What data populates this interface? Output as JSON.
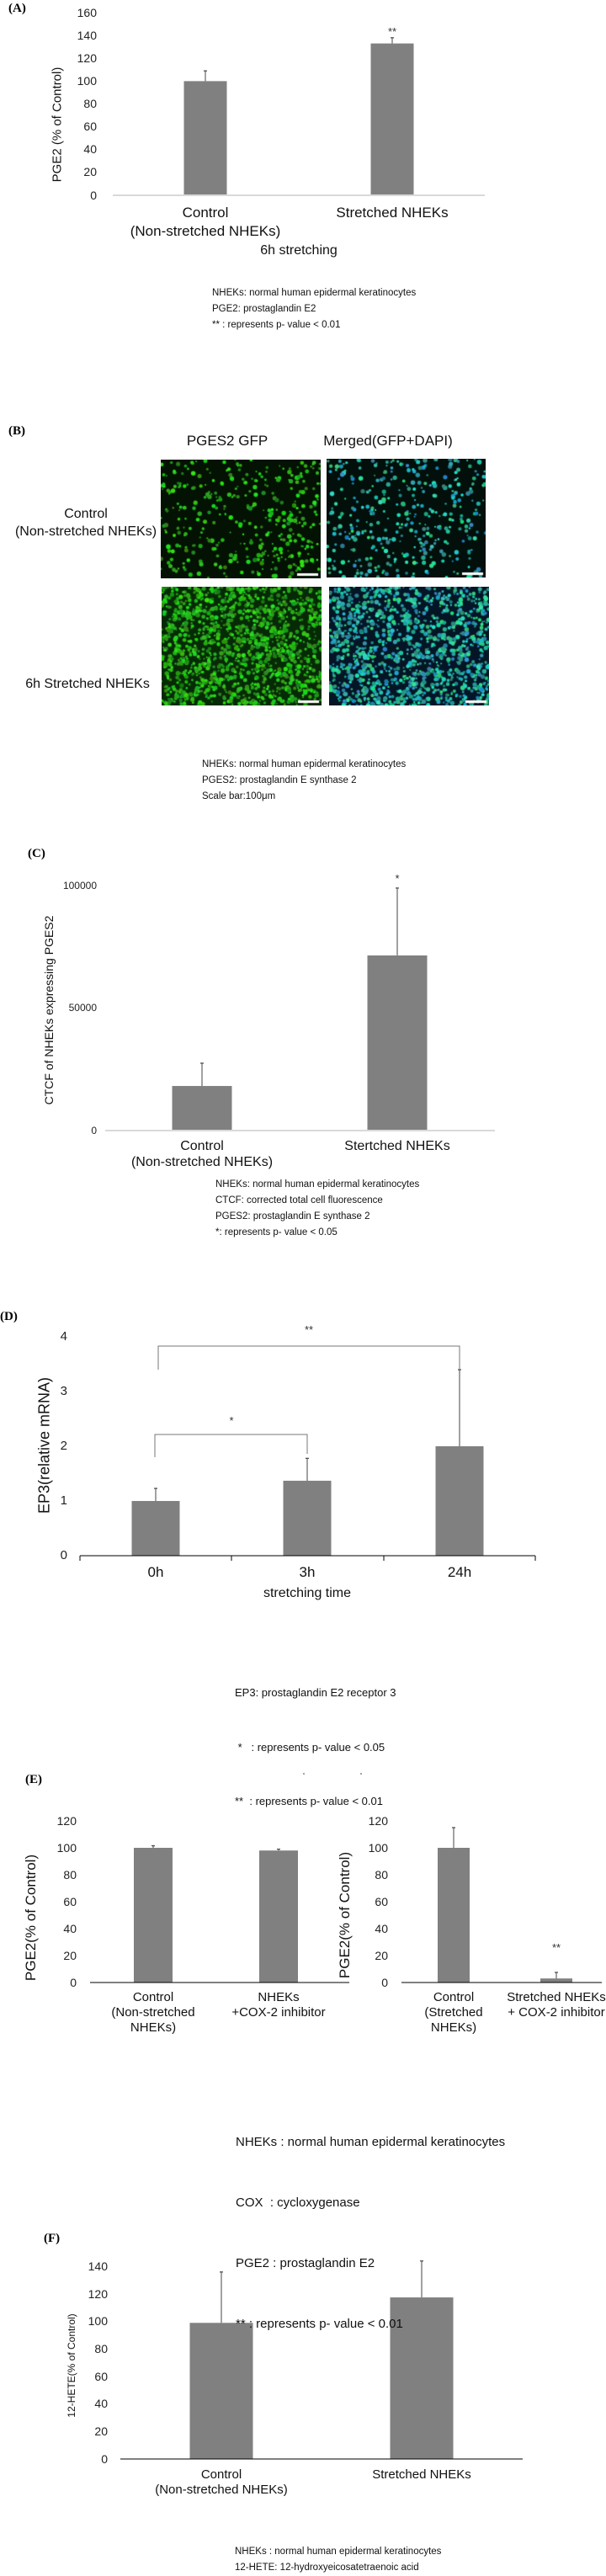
{
  "panels": {
    "A": {
      "label": "(A)",
      "xlabel": "6h stretching",
      "notes": [
        "NHEKs: normal human epidermal keratinocytes",
        "PGE2: prostaglandin E2",
        "** : represents p- value < 0.01"
      ]
    },
    "B": {
      "label": "(B)",
      "col_headers": [
        "PGES2 GFP",
        "Merged(GFP+DAPI)"
      ],
      "row_labels": [
        [
          "Control",
          "(Non-stretched NHEKs)"
        ],
        [
          "6h Stretched NHEKs"
        ]
      ],
      "notes": [
        "NHEKs: normal human epidermal keratinocytes",
        "PGES2: prostaglandin E synthase 2",
        "Scale bar:100μm"
      ]
    },
    "C": {
      "label": "(C)",
      "notes": [
        "NHEKs: normal human epidermal keratinocytes",
        "CTCF: corrected total cell fluorescence",
        "PGES2: prostaglandin E synthase 2",
        "*: represents p- value < 0.05"
      ]
    },
    "D": {
      "label": "(D)",
      "notes": [
        "EP3: prostaglandin E2 receptor 3",
        " *   : represents p- value < 0.05",
        "**  : represents p- value < 0.01"
      ]
    },
    "E": {
      "label": "(E)",
      "notes": [
        "NHEKs : normal human epidermal keratinocytes",
        "COX  : cycloxygenase",
        "PGE2 : prostaglandin E2",
        "** : represents p- value < 0.01"
      ]
    },
    "F": {
      "label": "(F)",
      "notes": [
        "NHEKs : normal human epidermal keratinocytes",
        "12-HETE: 12-hydroxyeicosatetraenoic acid"
      ]
    }
  },
  "colors": {
    "bar": "#808080",
    "error": "#444444",
    "axis_light": "#d9d9d9",
    "axis_dark": "#000000"
  },
  "chart_data": [
    {
      "panel": "A",
      "type": "bar",
      "title": "",
      "ylabel": "PGE2 (% of Control)",
      "xlabel": "6h stretching",
      "categories": [
        [
          "Control",
          "(Non-stretched NHEKs)"
        ],
        [
          "Stretched NHEKs"
        ]
      ],
      "values": [
        100,
        133
      ],
      "errors": [
        109,
        138
      ],
      "yticks": [
        "0",
        "20",
        "40",
        "60",
        "80",
        "100",
        "120",
        "140",
        "160"
      ],
      "ylim": [
        0,
        160
      ],
      "significance": [
        {
          "index": 1,
          "label": "**"
        }
      ],
      "grid": false
    },
    {
      "panel": "C",
      "type": "bar",
      "title": "",
      "ylabel": "CTCF of NHEKs expressing PGES2",
      "xlabel": "",
      "categories": [
        [
          "Control",
          "(Non-stretched NHEKs)"
        ],
        [
          "Stertched NHEKs"
        ]
      ],
      "values": [
        18200,
        71500
      ],
      "errors": [
        27500,
        99000
      ],
      "yticks": [
        "0",
        "50000",
        "100000"
      ],
      "ylim": [
        0,
        100000
      ],
      "significance": [
        {
          "index": 1,
          "label": "*"
        }
      ],
      "grid": false
    },
    {
      "panel": "D",
      "type": "bar",
      "title": "",
      "ylabel": "EP3(relative mRNA)",
      "xlabel": "stretching time",
      "categories": [
        [
          "0h"
        ],
        [
          "3h"
        ],
        [
          "24h"
        ]
      ],
      "values": [
        1.0,
        1.37,
        2.0
      ],
      "errors": [
        1.23,
        1.78,
        3.4
      ],
      "yticks": [
        "0",
        "1",
        "2",
        "3",
        "4"
      ],
      "ylim": [
        0,
        4
      ],
      "brackets": [
        {
          "from": 0,
          "to": 1,
          "label": "*"
        },
        {
          "from": 0,
          "to": 2,
          "label": "**"
        }
      ],
      "grid": false
    },
    {
      "panel": "E",
      "type": "bar",
      "title": "",
      "ylabel": "PGE2(% of Control)",
      "xlabel": "",
      "categories": [
        [
          "Control",
          "(Non-stretched",
          "NHEKs)"
        ],
        [
          "NHEKs",
          "+COX-2 inhibitor"
        ]
      ],
      "values": [
        100,
        98
      ],
      "errors": [
        101.5,
        99
      ],
      "yticks": [
        "0",
        "20",
        "40",
        "60",
        "80",
        "100",
        "120"
      ],
      "ylim": [
        0,
        120
      ],
      "significance": [],
      "grid": false
    },
    {
      "panel": "E",
      "type": "bar",
      "title": "",
      "ylabel": "PGE2(% of Control)",
      "xlabel": "",
      "categories": [
        [
          "Control",
          "(Stretched",
          "NHEKs)"
        ],
        [
          "Stretched NHEKs",
          "+ COX-2 inhibitor"
        ]
      ],
      "values": [
        100,
        3
      ],
      "errors": [
        115,
        7.5
      ],
      "yticks": [
        "0",
        "20",
        "40",
        "60",
        "80",
        "100",
        "120"
      ],
      "ylim": [
        0,
        120
      ],
      "significance": [
        {
          "index": 1,
          "label": "**"
        }
      ],
      "grid": false
    },
    {
      "panel": "F",
      "type": "bar",
      "title": "",
      "ylabel": "12-HETE(% of Control)",
      "xlabel": "",
      "categories": [
        [
          "Control",
          "(Non-stretched NHEKs)"
        ],
        [
          "Stretched NHEKs"
        ]
      ],
      "values": [
        99,
        117.5
      ],
      "errors": [
        136,
        144
      ],
      "yticks": [
        "0",
        "20",
        "40",
        "60",
        "80",
        "100",
        "120",
        "140"
      ],
      "ylim": [
        0,
        140
      ],
      "significance": [],
      "grid": false
    }
  ]
}
